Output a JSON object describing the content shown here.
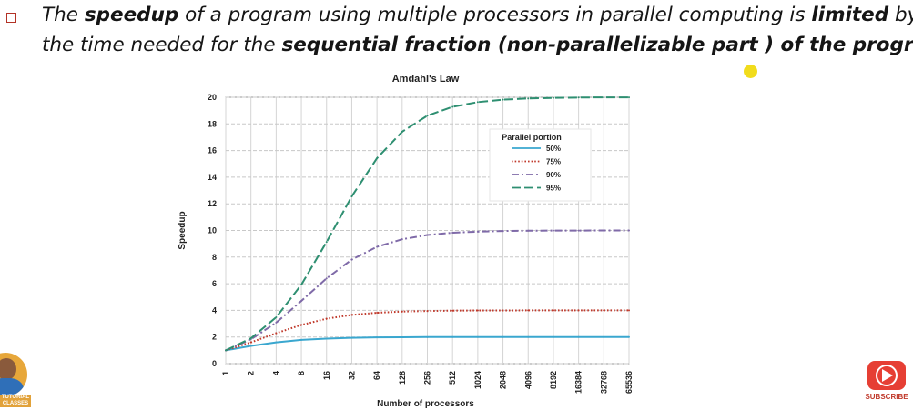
{
  "slide": {
    "line1": {
      "p1": "The ",
      "b1": "speedup",
      "p2": " of a program using multiple processors in parallel computing is ",
      "b2": "limited",
      "p3": " by"
    },
    "line2": {
      "p1": "the time needed for the ",
      "b1": "sequential fraction (non-parallelizable part ) of the program.",
      "p2": ""
    },
    "avatar_tag": "TUTORIAL CLASSES",
    "subscribe_label": "SUBSCRIBE",
    "accent_color": "#b33226",
    "subscribe_color": "#e63f34",
    "pointer_color": "#f1dc1c"
  },
  "chart_data": {
    "type": "line",
    "title": "Amdahl's Law",
    "xlabel": "Number of processors",
    "ylabel": "Speedup",
    "x_scale": "log2",
    "x": [
      1,
      2,
      4,
      8,
      16,
      32,
      64,
      128,
      256,
      512,
      1024,
      2048,
      4096,
      8192,
      16384,
      32768,
      65536
    ],
    "x_tick_labels": [
      "1",
      "2",
      "4",
      "8",
      "16",
      "32",
      "64",
      "128",
      "256",
      "512",
      "1024",
      "2048",
      "4096",
      "8192",
      "16384",
      "32768",
      "65536"
    ],
    "ylim": [
      0,
      20
    ],
    "y_ticks": [
      0,
      2,
      4,
      6,
      8,
      10,
      12,
      14,
      16,
      18,
      20
    ],
    "grid": true,
    "legend": {
      "title": "Parallel portion",
      "position": "top-right"
    },
    "series": [
      {
        "name": "50%",
        "color": "#3aa7cf",
        "style": "solid",
        "values": [
          1.0,
          1.33,
          1.6,
          1.78,
          1.88,
          1.94,
          1.97,
          1.98,
          1.99,
          2.0,
          2.0,
          2.0,
          2.0,
          2.0,
          2.0,
          2.0,
          2.0
        ]
      },
      {
        "name": "75%",
        "color": "#c0392b",
        "style": "dotted",
        "values": [
          1.0,
          1.6,
          2.29,
          2.91,
          3.37,
          3.66,
          3.82,
          3.91,
          3.95,
          3.98,
          3.99,
          3.99,
          4.0,
          4.0,
          4.0,
          4.0,
          4.0
        ]
      },
      {
        "name": "90%",
        "color": "#7f6aa8",
        "style": "dashdot",
        "values": [
          1.0,
          1.82,
          3.08,
          4.71,
          6.4,
          7.81,
          8.77,
          9.34,
          9.66,
          9.83,
          9.91,
          9.96,
          9.98,
          9.99,
          9.99,
          10.0,
          10.0
        ]
      },
      {
        "name": "95%",
        "color": "#2e8f71",
        "style": "dashed",
        "values": [
          1.0,
          1.9,
          3.48,
          5.93,
          9.14,
          12.55,
          15.42,
          17.41,
          18.62,
          19.28,
          19.64,
          19.82,
          19.91,
          19.95,
          19.98,
          19.99,
          19.99
        ]
      }
    ]
  }
}
